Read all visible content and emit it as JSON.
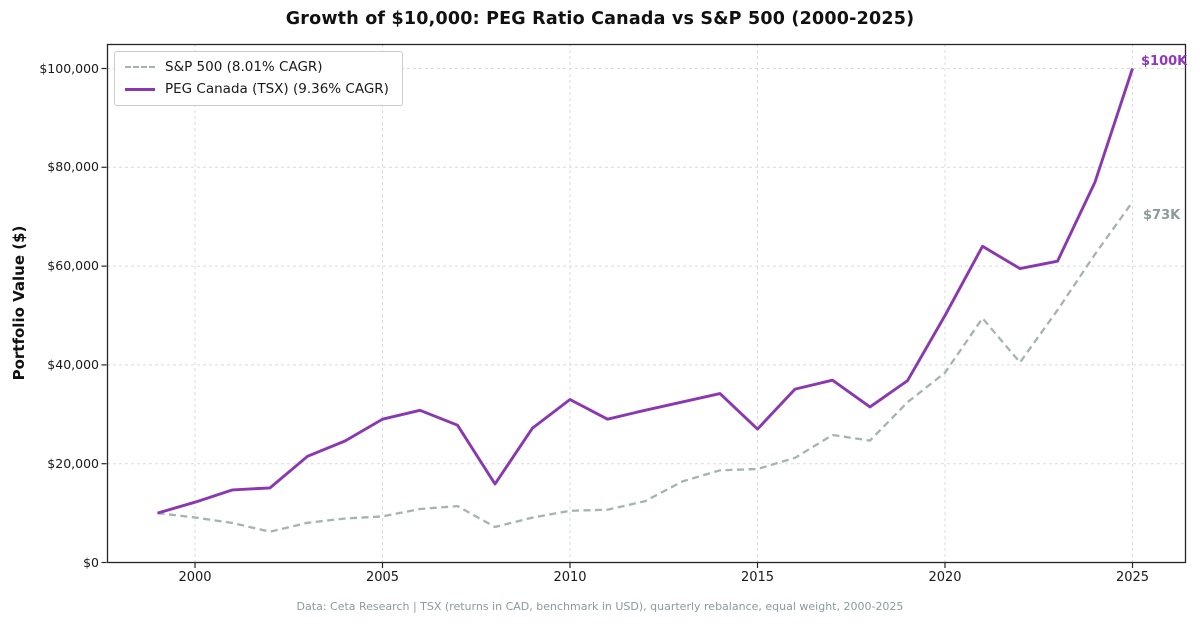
{
  "title": "Growth of $10,000: PEG Ratio Canada vs S&P 500 (2000-2025)",
  "footer": "Data: Ceta Research | TSX (returns in CAD, benchmark in USD), quarterly rebalance, equal weight, 2000-2025",
  "legend": {
    "items": [
      {
        "label": "S&P 500 (8.01% CAGR)"
      },
      {
        "label": "PEG Canada (TSX) (9.36% CAGR)"
      }
    ]
  },
  "annotations": {
    "peg_end": "$100K",
    "sp_end": "$73K"
  },
  "colors": {
    "peg_line": "#8a38b0",
    "peg_label": "#9136c0",
    "sp_line": "#a5b3b3",
    "sp_label": "#8b9b9b",
    "grid": "#dcdcdc",
    "spine": "#262626"
  },
  "chart_data": {
    "type": "line",
    "title": "Growth of $10,000: PEG Ratio Canada vs S&P 500 (2000-2025)",
    "xlabel": "",
    "ylabel": "Portfolio Value ($)",
    "grid": true,
    "legend_position": "upper left",
    "xlim": [
      1997.65,
      2026.45
    ],
    "ylim": [
      0,
      104900
    ],
    "x": [
      1999,
      2000,
      2001,
      2002,
      2003,
      2004,
      2005,
      2006,
      2007,
      2008,
      2009,
      2010,
      2011,
      2012,
      2013,
      2014,
      2015,
      2016,
      2017,
      2018,
      2019,
      2020,
      2021,
      2022,
      2023,
      2024,
      2025
    ],
    "series": [
      {
        "name": "S&P 500 (8.01% CAGR)",
        "style": "dashed",
        "color": "#a5b3b3",
        "values": [
          10000,
          9100,
          8000,
          6240,
          8030,
          8900,
          9340,
          10820,
          11410,
          7190,
          9090,
          10470,
          10690,
          12400,
          16410,
          18660,
          18920,
          21190,
          25810,
          24680,
          32450,
          38420,
          49450,
          40500,
          51100,
          62400,
          73000
        ]
      },
      {
        "name": "PEG Canada (TSX) (9.36% CAGR)",
        "style": "solid",
        "color": "#8a38b0",
        "values": [
          10000,
          12200,
          14700,
          15100,
          21500,
          24600,
          29000,
          30800,
          27800,
          15900,
          27200,
          33000,
          29000,
          30800,
          32500,
          34200,
          27000,
          35100,
          36900,
          31500,
          36800,
          50000,
          64000,
          59500,
          61000,
          77000,
          100000
        ]
      }
    ],
    "x_ticks": [
      {
        "v": 2000,
        "label": "2000"
      },
      {
        "v": 2005,
        "label": "2005"
      },
      {
        "v": 2010,
        "label": "2010"
      },
      {
        "v": 2015,
        "label": "2015"
      },
      {
        "v": 2020,
        "label": "2020"
      },
      {
        "v": 2025,
        "label": "2025"
      }
    ],
    "y_ticks": [
      {
        "v": 0,
        "label": "$0"
      },
      {
        "v": 20000,
        "label": "$20,000"
      },
      {
        "v": 40000,
        "label": "$40,000"
      },
      {
        "v": 60000,
        "label": "$60,000"
      },
      {
        "v": 80000,
        "label": "$80,000"
      },
      {
        "v": 100000,
        "label": "$100,000"
      }
    ]
  }
}
